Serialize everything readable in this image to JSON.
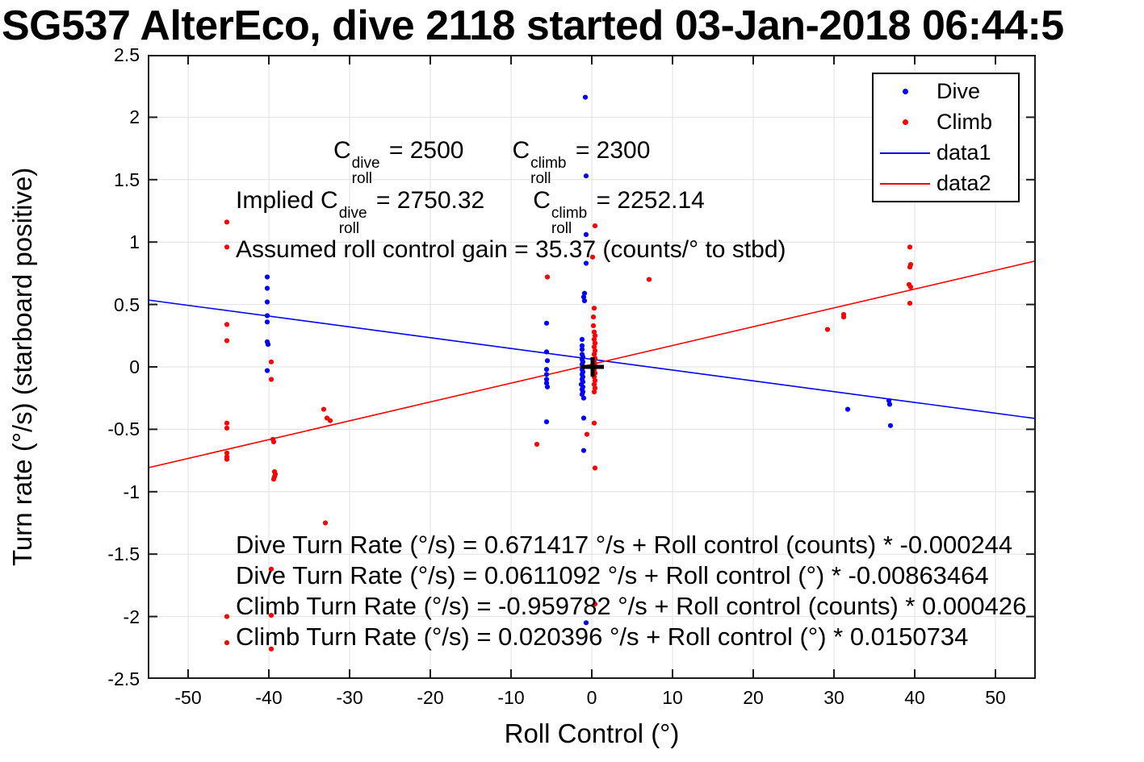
{
  "title": "SG537 AlterEco, dive 2118 started 03-Jan-2018 06:44:5",
  "annotations": {
    "config": {
      "c1": "C",
      "sup1": "dive",
      "sub1": "roll",
      "val1": " = 2500",
      "c2": "C",
      "sup2": "climb",
      "sub2": "roll",
      "val2": " = 2300"
    },
    "implied": {
      "prefix": "Implied ",
      "c1": "C",
      "sup1": "dive",
      "sub1": "roll",
      "val1": " = 2750.32",
      "c2": "C",
      "sup2": "climb",
      "sub2": "roll",
      "val2": " = 2252.14"
    },
    "gain": "Assumed roll control gain = 35.37 (counts/° to stbd)"
  },
  "equations": [
    "Dive Turn Rate (°/s) = 0.671417 °/s + Roll control (counts) * -0.000244",
    "Dive Turn Rate (°/s) = 0.0611092 °/s + Roll control (°) * -0.00863464",
    "Climb Turn Rate (°/s) = -0.959782 °/s + Roll control (counts) * 0.000426",
    "Climb Turn Rate (°/s) = 0.020396 °/s + Roll control (°) * 0.0150734"
  ],
  "legend": {
    "items": [
      {
        "label": "Dive",
        "marker": "dot",
        "color": "#0000ff"
      },
      {
        "label": "Climb",
        "marker": "dot",
        "color": "#ff0000"
      },
      {
        "label": "data1",
        "marker": "line",
        "color": "#0000ff"
      },
      {
        "label": "data2",
        "marker": "line",
        "color": "#ff0000"
      }
    ]
  },
  "chart_data": {
    "type": "scatter",
    "title": "SG537 AlterEco, dive 2118 started 03-Jan-2018 06:44:5",
    "xlabel": "Roll Control (°)",
    "ylabel": "Turn rate (°/s) (starboard positive)",
    "xlim": [
      -55,
      55
    ],
    "ylim": [
      -2.5,
      2.5
    ],
    "x_ticks": [
      -50,
      -40,
      -30,
      -20,
      -10,
      0,
      10,
      20,
      30,
      40,
      50
    ],
    "y_ticks": [
      -2.5,
      -2,
      -1.5,
      -1,
      -0.5,
      0,
      0.5,
      1,
      1.5,
      2,
      2.5
    ],
    "grid": true,
    "grid_color": "#e0e0e0",
    "frame_color": "#1a1a1a",
    "legend_position": "top-right",
    "origin_marker": {
      "type": "plus",
      "x": 0.1,
      "y": 0.0,
      "color": "#000000"
    },
    "series": [
      {
        "name": "Dive",
        "type": "scatter",
        "color": "#0000ff",
        "points": [
          [
            -40.2,
            0.72
          ],
          [
            -40.2,
            0.63
          ],
          [
            -40.2,
            0.52
          ],
          [
            -40.2,
            0.41
          ],
          [
            -40.2,
            0.36
          ],
          [
            -40.2,
            0.2
          ],
          [
            -40.1,
            0.18
          ],
          [
            -40.2,
            -0.03
          ],
          [
            -5.6,
            0.35
          ],
          [
            -5.6,
            0.12
          ],
          [
            -5.5,
            0.05
          ],
          [
            -5.6,
            -0.02
          ],
          [
            -5.6,
            -0.06
          ],
          [
            -5.6,
            -0.1
          ],
          [
            -5.6,
            -0.13
          ],
          [
            -5.5,
            -0.16
          ],
          [
            -5.6,
            -0.44
          ],
          [
            -0.8,
            2.16
          ],
          [
            -0.7,
            1.53
          ],
          [
            -0.7,
            1.06
          ],
          [
            -0.7,
            0.83
          ],
          [
            -0.9,
            0.59
          ],
          [
            -1.0,
            0.56
          ],
          [
            -0.9,
            0.53
          ],
          [
            -1.2,
            0.22
          ],
          [
            -1.2,
            0.17
          ],
          [
            -1.2,
            0.14
          ],
          [
            -1.2,
            0.1
          ],
          [
            -1.1,
            0.08
          ],
          [
            -1.2,
            0.06
          ],
          [
            -1.1,
            0.04
          ],
          [
            -1.2,
            0.02
          ],
          [
            -1.1,
            0.0
          ],
          [
            -1.2,
            -0.02
          ],
          [
            -1.1,
            -0.04
          ],
          [
            -1.2,
            -0.06
          ],
          [
            -1.1,
            -0.08
          ],
          [
            -1.2,
            -0.1
          ],
          [
            -1.1,
            -0.12
          ],
          [
            -1.3,
            -0.14
          ],
          [
            -1.1,
            -0.16
          ],
          [
            -1.2,
            -0.18
          ],
          [
            -1.1,
            -0.2
          ],
          [
            -1.2,
            -0.22
          ],
          [
            -1.0,
            -0.25
          ],
          [
            -1.0,
            -0.41
          ],
          [
            -1.0,
            -0.67
          ],
          [
            -0.7,
            -2.05
          ],
          [
            31.7,
            -0.34
          ],
          [
            36.8,
            -0.27
          ],
          [
            36.9,
            -0.3
          ],
          [
            37.0,
            -0.47
          ]
        ]
      },
      {
        "name": "Climb",
        "type": "scatter",
        "color": "#ff0000",
        "points": [
          [
            -45.2,
            1.16
          ],
          [
            -45.2,
            0.96
          ],
          [
            -45.2,
            0.34
          ],
          [
            -45.2,
            0.21
          ],
          [
            -45.2,
            -0.45
          ],
          [
            -45.2,
            -0.49
          ],
          [
            -45.2,
            -0.69
          ],
          [
            -45.2,
            -0.72
          ],
          [
            -45.2,
            -0.74
          ],
          [
            -45.2,
            -2.0
          ],
          [
            -45.2,
            -2.21
          ],
          [
            -39.7,
            0.04
          ],
          [
            -39.7,
            -0.1
          ],
          [
            -39.5,
            -0.58
          ],
          [
            -39.4,
            -0.6
          ],
          [
            -39.3,
            -0.84
          ],
          [
            -39.2,
            -0.86
          ],
          [
            -39.3,
            -0.88
          ],
          [
            -39.4,
            -0.9
          ],
          [
            -39.7,
            -1.62
          ],
          [
            -39.7,
            -1.99
          ],
          [
            -39.7,
            -2.26
          ],
          [
            -33.2,
            -0.34
          ],
          [
            -32.8,
            -0.41
          ],
          [
            -32.4,
            -0.43
          ],
          [
            -33.0,
            -1.25
          ],
          [
            -6.8,
            -0.62
          ],
          [
            -5.5,
            0.72
          ],
          [
            0.4,
            1.13
          ],
          [
            0.1,
            0.88
          ],
          [
            0.3,
            0.47
          ],
          [
            0.2,
            0.4
          ],
          [
            0.2,
            0.33
          ],
          [
            0.3,
            0.28
          ],
          [
            0.4,
            0.25
          ],
          [
            0.3,
            0.22
          ],
          [
            0.4,
            0.19
          ],
          [
            0.3,
            0.16
          ],
          [
            0.4,
            0.13
          ],
          [
            0.3,
            0.1
          ],
          [
            0.4,
            0.07
          ],
          [
            0.3,
            0.04
          ],
          [
            0.4,
            0.01
          ],
          [
            0.3,
            -0.02
          ],
          [
            0.4,
            -0.05
          ],
          [
            0.3,
            -0.08
          ],
          [
            0.4,
            -0.11
          ],
          [
            0.3,
            -0.14
          ],
          [
            0.4,
            -0.17
          ],
          [
            0.3,
            -0.2
          ],
          [
            0.3,
            -0.45
          ],
          [
            -0.6,
            -0.54
          ],
          [
            0.4,
            -0.81
          ],
          [
            0.4,
            -1.9
          ],
          [
            7.1,
            0.7
          ],
          [
            29.2,
            0.3
          ],
          [
            31.2,
            0.42
          ],
          [
            31.2,
            0.4
          ],
          [
            39.4,
            0.96
          ],
          [
            39.5,
            0.82
          ],
          [
            39.4,
            0.8
          ],
          [
            39.3,
            0.66
          ],
          [
            39.5,
            0.64
          ],
          [
            39.4,
            0.51
          ]
        ]
      },
      {
        "name": "data1",
        "type": "line",
        "color": "#0000ff",
        "intercept": 0.0611092,
        "slope": -0.00863464
      },
      {
        "name": "data2",
        "type": "line",
        "color": "#ff0000",
        "intercept": 0.020396,
        "slope": 0.0150734
      }
    ]
  }
}
